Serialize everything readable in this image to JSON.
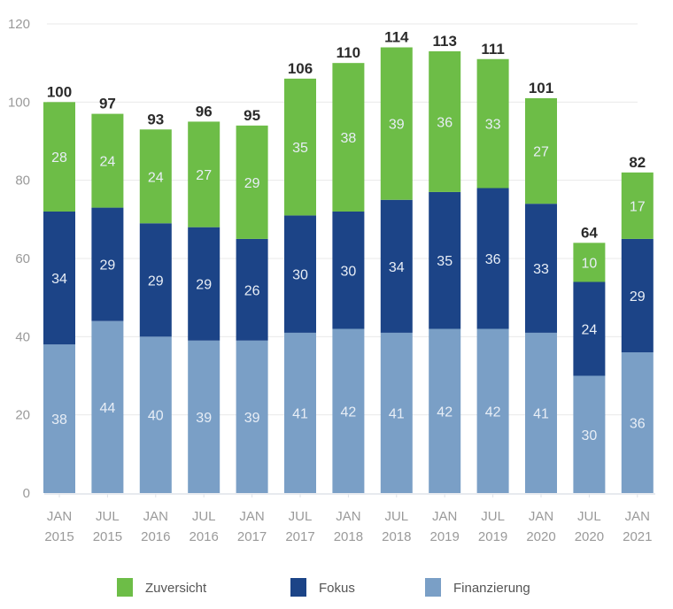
{
  "chart_data": {
    "type": "bar",
    "stacked": true,
    "title": "",
    "xlabel": "",
    "ylabel": "",
    "ylim": [
      0,
      120
    ],
    "yticks": [
      0,
      20,
      40,
      60,
      80,
      100,
      120
    ],
    "grid": true,
    "legend_position": "bottom",
    "categories": [
      [
        "JAN",
        "2015"
      ],
      [
        "JUL",
        "2015"
      ],
      [
        "JAN",
        "2016"
      ],
      [
        "JUL",
        "2016"
      ],
      [
        "JAN",
        "2017"
      ],
      [
        "JUL",
        "2017"
      ],
      [
        "JAN",
        "2018"
      ],
      [
        "JUL",
        "2018"
      ],
      [
        "JAN",
        "2019"
      ],
      [
        "JUL",
        "2019"
      ],
      [
        "JAN",
        "2020"
      ],
      [
        "JUL",
        "2020"
      ],
      [
        "JAN",
        "2021"
      ]
    ],
    "series": [
      {
        "name": "Finanzierung",
        "color": "#7a9fc6",
        "values": [
          38,
          44,
          40,
          39,
          39,
          41,
          42,
          41,
          42,
          42,
          41,
          30,
          36
        ]
      },
      {
        "name": "Fokus",
        "color": "#1c4487",
        "values": [
          34,
          29,
          29,
          29,
          26,
          30,
          30,
          34,
          35,
          36,
          33,
          24,
          29
        ]
      },
      {
        "name": "Zuversicht",
        "color": "#6dbd47",
        "values": [
          28,
          24,
          24,
          27,
          29,
          35,
          38,
          39,
          36,
          33,
          27,
          10,
          17
        ]
      }
    ],
    "totals": [
      100,
      97,
      93,
      96,
      95,
      106,
      110,
      114,
      113,
      111,
      101,
      64,
      82
    ],
    "legend": [
      {
        "name": "Zuversicht",
        "color": "#6dbd47"
      },
      {
        "name": "Fokus",
        "color": "#1c4487"
      },
      {
        "name": "Finanzierung",
        "color": "#7a9fc6"
      }
    ]
  }
}
